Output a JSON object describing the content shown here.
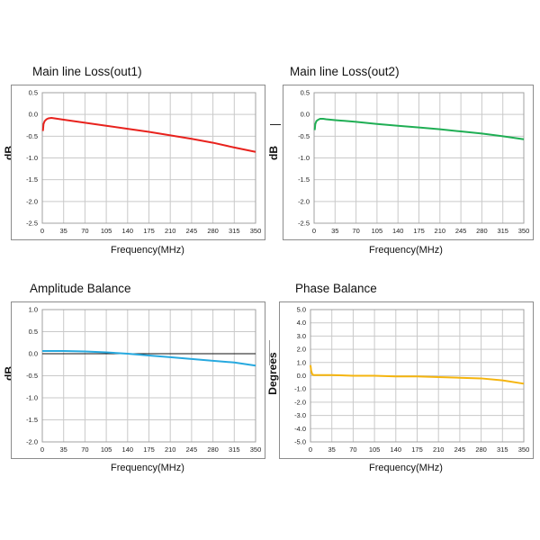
{
  "chart_data": [
    {
      "type": "line",
      "title": "Main line Loss(out1)",
      "xlabel": "Frequency(MHz)",
      "ylabel": "dB",
      "xlim": [
        0,
        350
      ],
      "ylim": [
        -2.5,
        0.5
      ],
      "xticks": [
        "0",
        "35",
        "70",
        "105",
        "140",
        "175",
        "210",
        "245",
        "280",
        "315",
        "350"
      ],
      "yticks": [
        "0.5",
        "0.0",
        "-0.5",
        "-1.0",
        "-1.5",
        "-2.0",
        "-2.5"
      ],
      "zero_line": false,
      "grid": true,
      "series": [
        {
          "color": "#e8221d",
          "x": [
            1,
            2,
            4,
            7,
            10,
            15,
            20,
            35,
            70,
            105,
            140,
            175,
            210,
            245,
            280,
            315,
            350
          ],
          "y": [
            -0.38,
            -0.22,
            -0.15,
            -0.11,
            -0.09,
            -0.08,
            -0.09,
            -0.12,
            -0.19,
            -0.26,
            -0.33,
            -0.4,
            -0.48,
            -0.56,
            -0.65,
            -0.76,
            -0.86
          ]
        }
      ]
    },
    {
      "type": "line",
      "title": "Main line Loss(out2)",
      "xlabel": "Frequency(MHz)",
      "ylabel": "dB",
      "xlim": [
        0,
        350
      ],
      "ylim": [
        -2.5,
        0.5
      ],
      "xticks": [
        "0",
        "35",
        "70",
        "105",
        "140",
        "175",
        "210",
        "245",
        "280",
        "315",
        "350"
      ],
      "yticks": [
        "0.5",
        "0.0",
        "-0.5",
        "-1.0",
        "-1.5",
        "-2.0",
        "-2.5"
      ],
      "zero_line": false,
      "grid": true,
      "series": [
        {
          "color": "#1fae54",
          "x": [
            1,
            2,
            4,
            7,
            10,
            15,
            20,
            35,
            70,
            105,
            140,
            175,
            210,
            245,
            280,
            315,
            350
          ],
          "y": [
            -0.36,
            -0.22,
            -0.15,
            -0.12,
            -0.1,
            -0.1,
            -0.11,
            -0.13,
            -0.17,
            -0.22,
            -0.26,
            -0.3,
            -0.34,
            -0.39,
            -0.44,
            -0.5,
            -0.57
          ]
        }
      ]
    },
    {
      "type": "line",
      "title": "Amplitude Balance",
      "xlabel": "Frequency(MHz)",
      "ylabel": "dB",
      "xlim": [
        0,
        350
      ],
      "ylim": [
        -2.0,
        1.0
      ],
      "xticks": [
        "0",
        "35",
        "70",
        "105",
        "140",
        "175",
        "210",
        "245",
        "280",
        "315",
        "350"
      ],
      "yticks": [
        "1.0",
        "0.5",
        "0.0",
        "-0.5",
        "-1.0",
        "-1.5",
        "-2.0"
      ],
      "zero_line": true,
      "grid": true,
      "series": [
        {
          "color": "#27a9df",
          "x": [
            0,
            35,
            70,
            105,
            140,
            175,
            210,
            245,
            280,
            315,
            350
          ],
          "y": [
            0.06,
            0.06,
            0.05,
            0.03,
            0.0,
            -0.04,
            -0.08,
            -0.12,
            -0.16,
            -0.2,
            -0.27
          ]
        }
      ]
    },
    {
      "type": "line",
      "title": "Phase  Balance",
      "xlabel": "Frequency(MHz)",
      "ylabel": "Degrees",
      "xlim": [
        0,
        350
      ],
      "ylim": [
        -5.0,
        5.0
      ],
      "xticks": [
        "0",
        "35",
        "70",
        "105",
        "140",
        "175",
        "210",
        "245",
        "280",
        "315",
        "350"
      ],
      "yticks": [
        "5.0",
        "4.0",
        "3.0",
        "2.0",
        "1.0",
        "0.0",
        "-1.0",
        "-2.0",
        "-3.0",
        "-4.0",
        "-5.0"
      ],
      "zero_line": false,
      "grid": true,
      "series": [
        {
          "color": "#f5b50f",
          "x": [
            0,
            1,
            3,
            6,
            10,
            35,
            70,
            105,
            140,
            175,
            210,
            245,
            280,
            315,
            350
          ],
          "y": [
            0.8,
            0.4,
            0.1,
            0.05,
            0.05,
            0.05,
            0.0,
            0.0,
            -0.05,
            -0.05,
            -0.1,
            -0.15,
            -0.2,
            -0.35,
            -0.6
          ]
        }
      ]
    }
  ]
}
